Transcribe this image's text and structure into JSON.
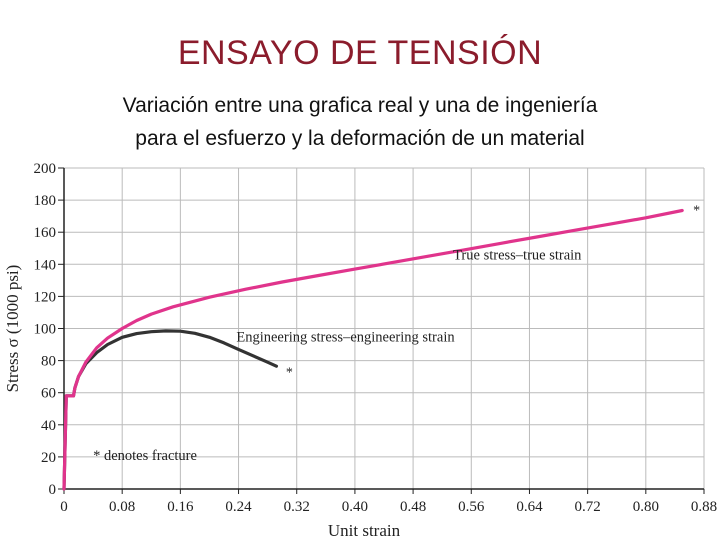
{
  "slide": {
    "title": "ENSAYO DE TENSIÓN",
    "subtitle_line1": "Variación entre una grafica real y una de ingeniería",
    "subtitle_line2": "para el esfuerzo y la deformación de un material"
  },
  "colors": {
    "title": "#8b1c2c",
    "true_curve": "#e0348c",
    "engineering_curve": "#333333",
    "grid": "#bbbbbb"
  },
  "chart_data": {
    "type": "line",
    "title": "",
    "xlabel": "Unit strain",
    "ylabel": "Stress σ (1000 psi)",
    "xlim": [
      0,
      0.88
    ],
    "ylim": [
      0,
      200
    ],
    "xticks": [
      0,
      0.08,
      0.16,
      0.24,
      0.32,
      0.4,
      0.48,
      0.56,
      0.64,
      0.72,
      0.8,
      0.88
    ],
    "xtick_labels": [
      "0",
      "0.08",
      "0.16",
      "0.24",
      "0.32",
      "0.40",
      "0.48",
      "0.56",
      "0.64",
      "0.72",
      "0.80",
      "0.88"
    ],
    "yticks": [
      0,
      20,
      40,
      60,
      80,
      100,
      120,
      140,
      160,
      180,
      200
    ],
    "ytick_labels": [
      "0",
      "20",
      "40",
      "60",
      "80",
      "100",
      "120",
      "140",
      "160",
      "180",
      "200"
    ],
    "grid": true,
    "series": [
      {
        "name": "Engineering stress–engineering strain",
        "x": [
          0,
          0.003,
          0.003,
          0.013,
          0.015,
          0.02,
          0.03,
          0.045,
          0.06,
          0.08,
          0.1,
          0.12,
          0.14,
          0.16,
          0.18,
          0.2,
          0.22,
          0.24,
          0.26,
          0.28,
          0.292
        ],
        "y": [
          0,
          56,
          58,
          58,
          63,
          70,
          78,
          85,
          90,
          94.5,
          96.8,
          98,
          98.5,
          98.3,
          97,
          94.5,
          91,
          87,
          83,
          79,
          76.5
        ]
      },
      {
        "name": "True stress–true strain",
        "x": [
          0,
          0.003,
          0.003,
          0.013,
          0.015,
          0.02,
          0.03,
          0.045,
          0.06,
          0.08,
          0.1,
          0.12,
          0.15,
          0.2,
          0.25,
          0.3,
          0.35,
          0.4,
          0.45,
          0.5,
          0.55,
          0.6,
          0.65,
          0.7,
          0.75,
          0.8,
          0.85
        ],
        "y": [
          0,
          56,
          58,
          58,
          63,
          70,
          79,
          88,
          94,
          100,
          105,
          109,
          113.5,
          119.5,
          124.5,
          129,
          133,
          137,
          141,
          145,
          149,
          153,
          157,
          161,
          165,
          169,
          173.5
        ]
      }
    ],
    "annotations": [
      {
        "text": "True stress–true strain",
        "x": 0.535,
        "y": 143
      },
      {
        "text": "Engineering stress–engineering strain",
        "x": 0.237,
        "y": 92
      },
      {
        "text": "* denotes fracture",
        "x": 0.04,
        "y": 18
      },
      {
        "text": "*",
        "x": 0.305,
        "y": 70
      },
      {
        "text": "*",
        "x": 0.865,
        "y": 171
      }
    ]
  }
}
